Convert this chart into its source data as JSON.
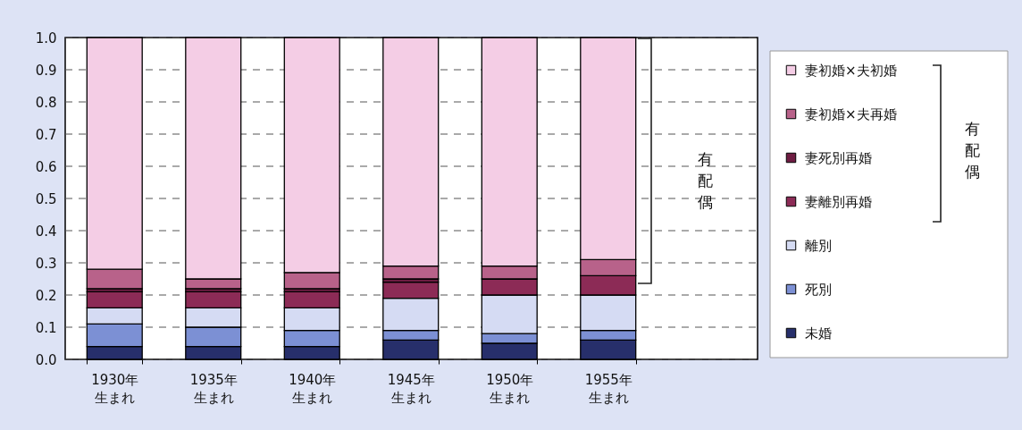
{
  "chart_data": {
    "type": "bar",
    "stacked": true,
    "categories": [
      "1930年生まれ",
      "1935年生まれ",
      "1940年生まれ",
      "1945年生まれ",
      "1950年生まれ",
      "1955年生まれ"
    ],
    "series": [
      {
        "name": "未婚",
        "color": "#272f6b",
        "values": [
          0.04,
          0.04,
          0.04,
          0.06,
          0.05,
          0.06
        ]
      },
      {
        "name": "死別",
        "color": "#7c90d4",
        "values": [
          0.07,
          0.06,
          0.05,
          0.03,
          0.03,
          0.03
        ]
      },
      {
        "name": "離別",
        "color": "#d5dbf3",
        "values": [
          0.05,
          0.06,
          0.07,
          0.1,
          0.12,
          0.11
        ]
      },
      {
        "name": "妻離別再婚",
        "color": "#8c2b56",
        "values": [
          0.05,
          0.05,
          0.05,
          0.05,
          0.05,
          0.06
        ]
      },
      {
        "name": "妻死別再婚",
        "color": "#6e1c42",
        "values": [
          0.01,
          0.01,
          0.01,
          0.01,
          0,
          0
        ]
      },
      {
        "name": "妻初婚×夫再婚",
        "color": "#b8628a",
        "values": [
          0.06,
          0.03,
          0.05,
          0.04,
          0.04,
          0.05
        ]
      },
      {
        "name": "妻初婚×夫初婚",
        "color": "#f4cde5",
        "values": [
          0.72,
          0.75,
          0.73,
          0.71,
          0.71,
          0.69
        ]
      }
    ],
    "ylim": [
      0,
      1
    ],
    "yticks": [
      {
        "value": 0,
        "label": "0.0"
      },
      0.1,
      0.2,
      0.3,
      0.4,
      0.5,
      0.6,
      0.7,
      0.8,
      0.9,
      {
        "value": 1,
        "label": "1.0"
      }
    ],
    "grid": "y",
    "legend": "right",
    "annotations": [
      "有配偶",
      "有配偶"
    ]
  }
}
